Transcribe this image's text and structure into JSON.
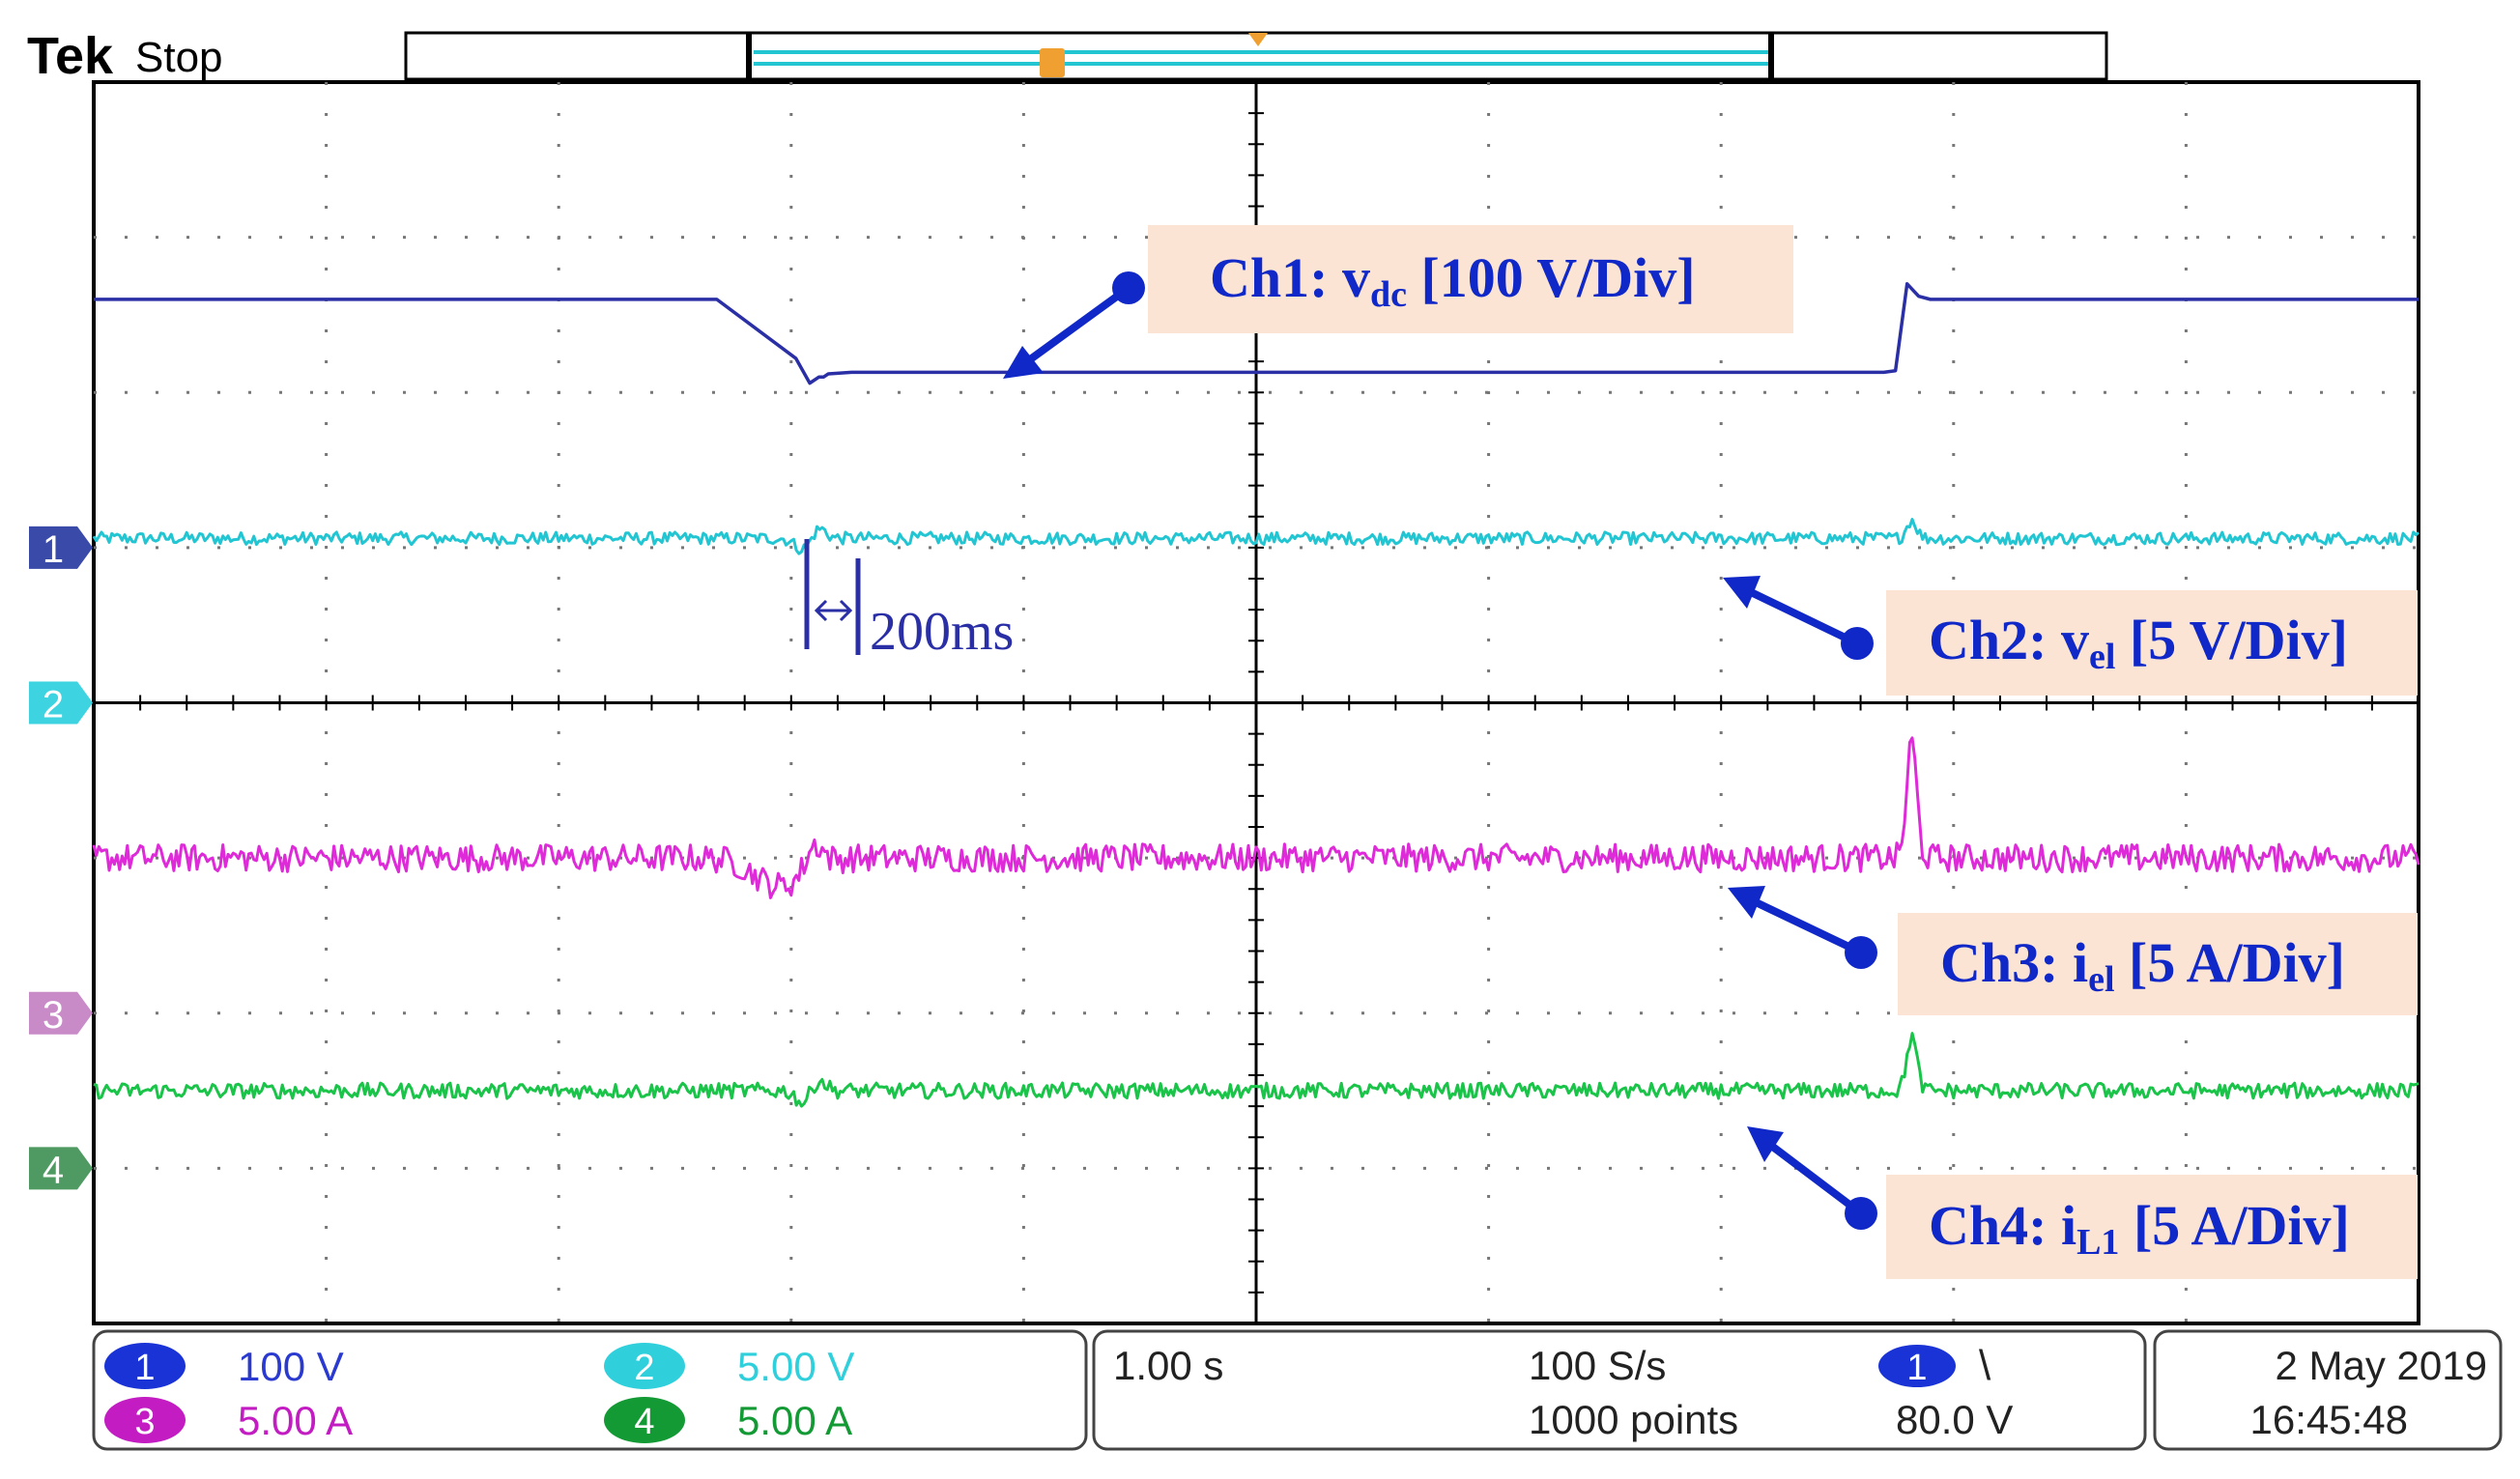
{
  "header": {
    "brand": "Tek",
    "status": "Stop"
  },
  "chart_data": {
    "type": "line",
    "title": "",
    "grid": true,
    "x": {
      "divisions": 10,
      "unit_per_div": "1.00 s",
      "range": [
        0,
        10
      ]
    },
    "y": {
      "divisions": 8,
      "range": [
        -4,
        4
      ]
    },
    "series": [
      {
        "name": "Ch1",
        "color": "#2a2fa6",
        "label": {
          "prefix": "Ch1: v",
          "sub": "dc",
          "suffix": " [100 V/Div]"
        },
        "marker": "1",
        "marker_level_div": 1,
        "points": [
          [
            0.0,
            2.6
          ],
          [
            2.68,
            2.6
          ],
          [
            3.02,
            2.22
          ],
          [
            3.08,
            2.06
          ],
          [
            3.12,
            2.1
          ],
          [
            3.14,
            2.1
          ],
          [
            3.16,
            2.12
          ],
          [
            3.26,
            2.13
          ],
          [
            7.7,
            2.13
          ],
          [
            7.75,
            2.14
          ],
          [
            7.8,
            2.7
          ],
          [
            7.85,
            2.62
          ],
          [
            7.9,
            2.6
          ],
          [
            10.0,
            2.6
          ]
        ]
      },
      {
        "name": "Ch2",
        "color": "#22c5d2",
        "label": {
          "prefix": "Ch2: v",
          "sub": "el",
          "suffix": " [5 V/Div]"
        },
        "marker": "2",
        "marker_level_div": 0,
        "baseline": 1.06,
        "noise": 0.04,
        "events": [
          [
            3.05,
            -0.07,
            0.05
          ],
          [
            3.12,
            0.07,
            0.04
          ],
          [
            7.82,
            0.12,
            0.03
          ]
        ]
      },
      {
        "name": "Ch3",
        "color": "#de2ad8",
        "label": {
          "prefix": "Ch3: i",
          "sub": "el",
          "suffix": " [5 A/Div]"
        },
        "marker": "3",
        "marker_level_div": -2,
        "baseline": -1.0,
        "noise": 0.09,
        "events": [
          [
            2.95,
            -0.18,
            0.15
          ],
          [
            3.1,
            0.15,
            0.05
          ],
          [
            7.82,
            0.75,
            0.03
          ]
        ]
      },
      {
        "name": "Ch4",
        "color": "#19c449",
        "label": {
          "prefix": "Ch4: i",
          "sub": "L1",
          "suffix": " [5 A/Div]"
        },
        "marker": "4",
        "marker_level_div": -3,
        "baseline": -2.5,
        "noise": 0.05,
        "events": [
          [
            3.05,
            -0.08,
            0.04
          ],
          [
            3.12,
            0.07,
            0.04
          ],
          [
            7.82,
            0.35,
            0.03
          ]
        ]
      }
    ],
    "annotation": {
      "text": "200ms"
    }
  },
  "footer": {
    "channels": [
      {
        "id": "1",
        "value": "100 V",
        "color": "#1a33d6",
        "text_color": "#2a3ad0"
      },
      {
        "id": "2",
        "value": "5.00 V",
        "color": "#2fd0dc",
        "text_color": "#2fd0dc"
      },
      {
        "id": "3",
        "value": "5.00 A",
        "color": "#c21cc2",
        "text_color": "#c21cc2"
      },
      {
        "id": "4",
        "value": "5.00 A",
        "color": "#139a35",
        "text_color": "#139a35"
      }
    ],
    "timebase": "1.00 s",
    "sample_rate": "100 S/s",
    "record_length": "1000 points",
    "trigger": {
      "source": "1",
      "slope": "\\",
      "level": "80.0 V"
    },
    "date": "2 May 2019",
    "time": "16:45:48"
  }
}
